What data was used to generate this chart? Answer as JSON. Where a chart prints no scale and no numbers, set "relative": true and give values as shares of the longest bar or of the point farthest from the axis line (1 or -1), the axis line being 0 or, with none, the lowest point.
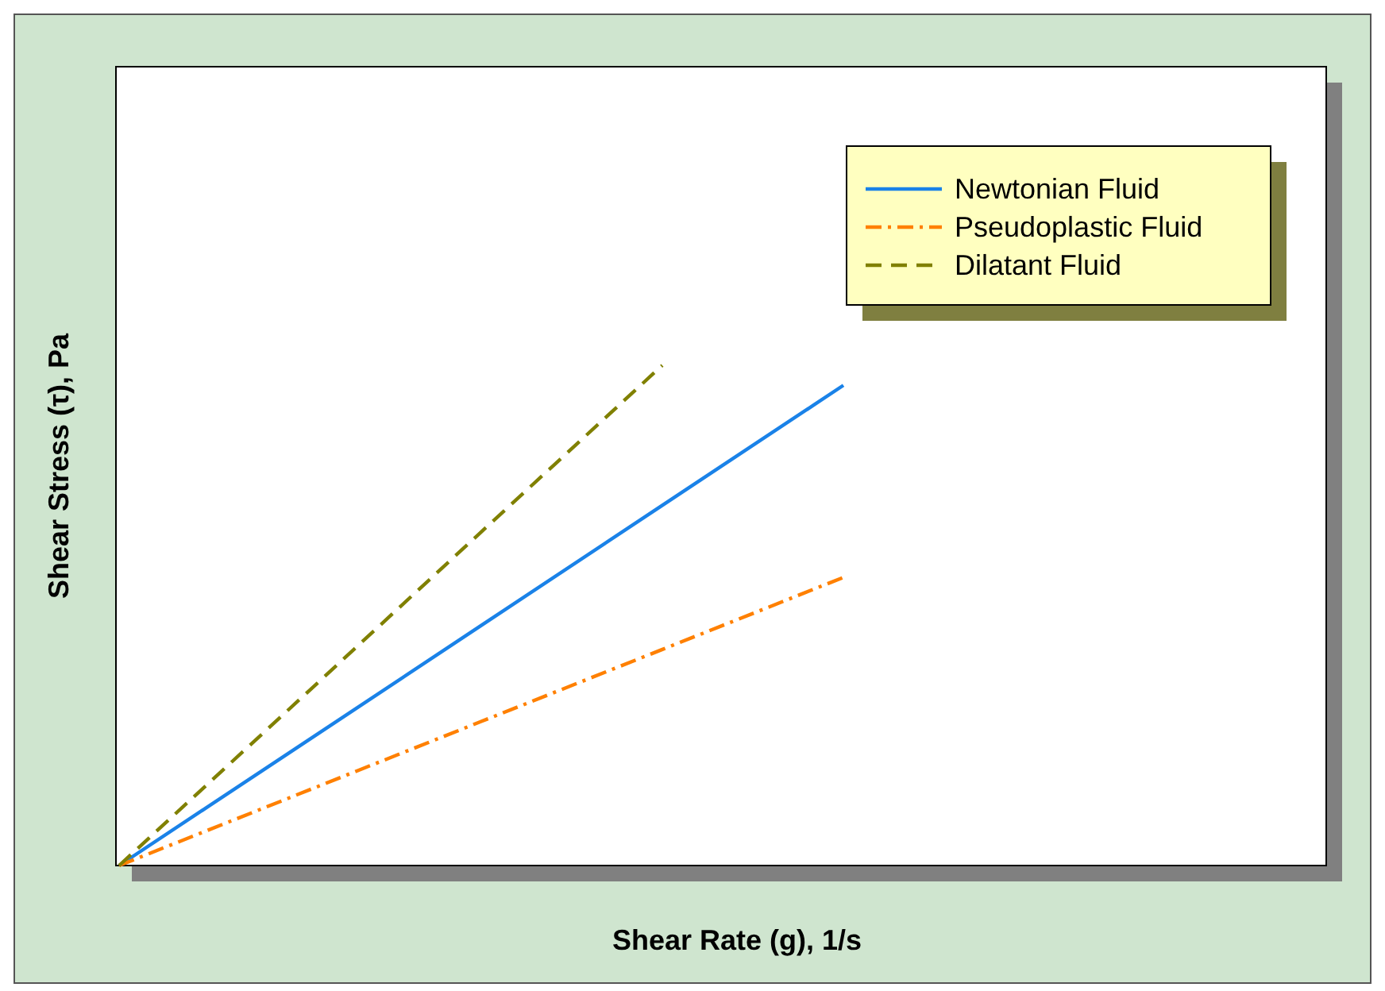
{
  "chart_data": {
    "type": "line",
    "relative": true,
    "xlabel": "Shear Rate (g), 1/s",
    "ylabel": "Shear Stress (τ), Pa",
    "categories": [
      null,
      null,
      null,
      null,
      null,
      null,
      null
    ],
    "legend": "top right",
    "grid": false,
    "series": [
      {
        "name": "Newtonian Fluid",
        "color": "#1a82e8",
        "line_style": "solid",
        "values": [
          0,
          0.24,
          0.48,
          0.72,
          0.96,
          null,
          null
        ]
      },
      {
        "name": "Pseudoplastic Fluid",
        "color": "#ff8000",
        "line_style": "dashdot",
        "values": [
          0,
          0.144,
          0.288,
          0.432,
          0.576,
          null,
          null
        ]
      },
      {
        "name": "Dilatant Fluid",
        "color": "#808000",
        "line_style": "dashed",
        "values": [
          0,
          0.333,
          0.667,
          1,
          null,
          null,
          null
        ]
      }
    ]
  }
}
